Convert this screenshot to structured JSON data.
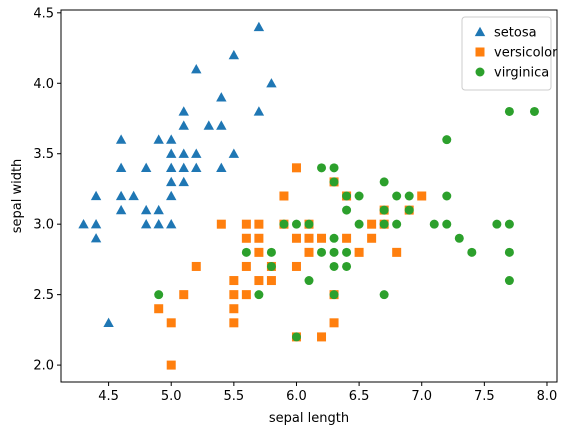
{
  "chart_data": {
    "type": "scatter",
    "xlabel": "sepal length",
    "ylabel": "sepal width",
    "xlim": [
      4.12,
      8.08
    ],
    "ylim": [
      1.88,
      4.52
    ],
    "xticks": [
      "4.5",
      "5.0",
      "5.5",
      "6.0",
      "6.5",
      "7.0",
      "7.5",
      "8.0"
    ],
    "yticks": [
      "2.0",
      "2.5",
      "3.0",
      "3.5",
      "4.0",
      "4.5"
    ],
    "grid": false,
    "legend_position": "top-right",
    "series": [
      {
        "name": "setosa",
        "marker": "triangle",
        "color": "#1f77b4",
        "points": [
          [
            4.3,
            3.0
          ],
          [
            4.4,
            3.2
          ],
          [
            4.4,
            3.0
          ],
          [
            4.4,
            2.9
          ],
          [
            4.5,
            2.3
          ],
          [
            4.6,
            3.6
          ],
          [
            4.6,
            3.4
          ],
          [
            4.6,
            3.2
          ],
          [
            4.6,
            3.1
          ],
          [
            4.7,
            3.2
          ],
          [
            4.8,
            3.4
          ],
          [
            4.8,
            3.1
          ],
          [
            4.8,
            3.0
          ],
          [
            4.9,
            3.6
          ],
          [
            4.9,
            3.1
          ],
          [
            4.9,
            3.0
          ],
          [
            5.0,
            3.6
          ],
          [
            5.0,
            3.5
          ],
          [
            5.0,
            3.4
          ],
          [
            5.0,
            3.3
          ],
          [
            5.0,
            3.2
          ],
          [
            5.0,
            3.0
          ],
          [
            5.1,
            3.8
          ],
          [
            5.1,
            3.7
          ],
          [
            5.1,
            3.5
          ],
          [
            5.1,
            3.4
          ],
          [
            5.1,
            3.3
          ],
          [
            5.2,
            4.1
          ],
          [
            5.2,
            3.5
          ],
          [
            5.2,
            3.4
          ],
          [
            5.3,
            3.7
          ],
          [
            5.4,
            3.9
          ],
          [
            5.4,
            3.7
          ],
          [
            5.4,
            3.4
          ],
          [
            5.5,
            4.2
          ],
          [
            5.5,
            3.5
          ],
          [
            5.7,
            4.4
          ],
          [
            5.7,
            3.8
          ],
          [
            5.8,
            4.0
          ]
        ]
      },
      {
        "name": "versicolor",
        "marker": "square",
        "color": "#ff7f0e",
        "points": [
          [
            4.9,
            2.4
          ],
          [
            5.0,
            2.3
          ],
          [
            5.0,
            2.0
          ],
          [
            5.1,
            2.5
          ],
          [
            5.2,
            2.7
          ],
          [
            5.4,
            3.0
          ],
          [
            5.5,
            2.6
          ],
          [
            5.5,
            2.5
          ],
          [
            5.5,
            2.4
          ],
          [
            5.5,
            2.3
          ],
          [
            5.6,
            3.0
          ],
          [
            5.6,
            2.9
          ],
          [
            5.6,
            2.7
          ],
          [
            5.6,
            2.5
          ],
          [
            5.7,
            3.0
          ],
          [
            5.7,
            2.9
          ],
          [
            5.7,
            2.8
          ],
          [
            5.7,
            2.6
          ],
          [
            5.8,
            2.7
          ],
          [
            5.8,
            2.6
          ],
          [
            5.9,
            3.2
          ],
          [
            5.9,
            3.0
          ],
          [
            6.0,
            3.4
          ],
          [
            6.0,
            2.9
          ],
          [
            6.0,
            2.7
          ],
          [
            6.0,
            2.2
          ],
          [
            6.1,
            3.0
          ],
          [
            6.1,
            2.9
          ],
          [
            6.1,
            2.8
          ],
          [
            6.2,
            2.9
          ],
          [
            6.2,
            2.2
          ],
          [
            6.3,
            3.3
          ],
          [
            6.3,
            2.5
          ],
          [
            6.3,
            2.3
          ],
          [
            6.4,
            3.2
          ],
          [
            6.4,
            2.9
          ],
          [
            6.5,
            2.8
          ],
          [
            6.6,
            3.0
          ],
          [
            6.6,
            2.9
          ],
          [
            6.7,
            3.1
          ],
          [
            6.7,
            3.0
          ],
          [
            6.8,
            2.8
          ],
          [
            6.9,
            3.1
          ],
          [
            7.0,
            3.2
          ]
        ]
      },
      {
        "name": "virginica",
        "marker": "circle",
        "color": "#2ca02c",
        "points": [
          [
            4.9,
            2.5
          ],
          [
            5.6,
            2.8
          ],
          [
            5.7,
            2.5
          ],
          [
            5.8,
            2.8
          ],
          [
            5.8,
            2.7
          ],
          [
            5.9,
            3.0
          ],
          [
            6.0,
            3.0
          ],
          [
            6.0,
            2.2
          ],
          [
            6.1,
            3.0
          ],
          [
            6.1,
            2.6
          ],
          [
            6.2,
            3.4
          ],
          [
            6.2,
            2.8
          ],
          [
            6.3,
            3.4
          ],
          [
            6.3,
            3.3
          ],
          [
            6.3,
            2.9
          ],
          [
            6.3,
            2.8
          ],
          [
            6.3,
            2.7
          ],
          [
            6.3,
            2.5
          ],
          [
            6.4,
            3.2
          ],
          [
            6.4,
            3.1
          ],
          [
            6.4,
            2.8
          ],
          [
            6.4,
            2.7
          ],
          [
            6.5,
            3.2
          ],
          [
            6.5,
            3.0
          ],
          [
            6.7,
            3.3
          ],
          [
            6.7,
            3.1
          ],
          [
            6.7,
            3.0
          ],
          [
            6.7,
            2.5
          ],
          [
            6.8,
            3.2
          ],
          [
            6.8,
            3.0
          ],
          [
            6.9,
            3.2
          ],
          [
            6.9,
            3.1
          ],
          [
            7.1,
            3.0
          ],
          [
            7.2,
            3.6
          ],
          [
            7.2,
            3.2
          ],
          [
            7.2,
            3.0
          ],
          [
            7.3,
            2.9
          ],
          [
            7.4,
            2.8
          ],
          [
            7.6,
            3.0
          ],
          [
            7.7,
            3.8
          ],
          [
            7.7,
            3.0
          ],
          [
            7.7,
            2.8
          ],
          [
            7.7,
            2.6
          ],
          [
            7.9,
            3.8
          ]
        ]
      }
    ]
  }
}
